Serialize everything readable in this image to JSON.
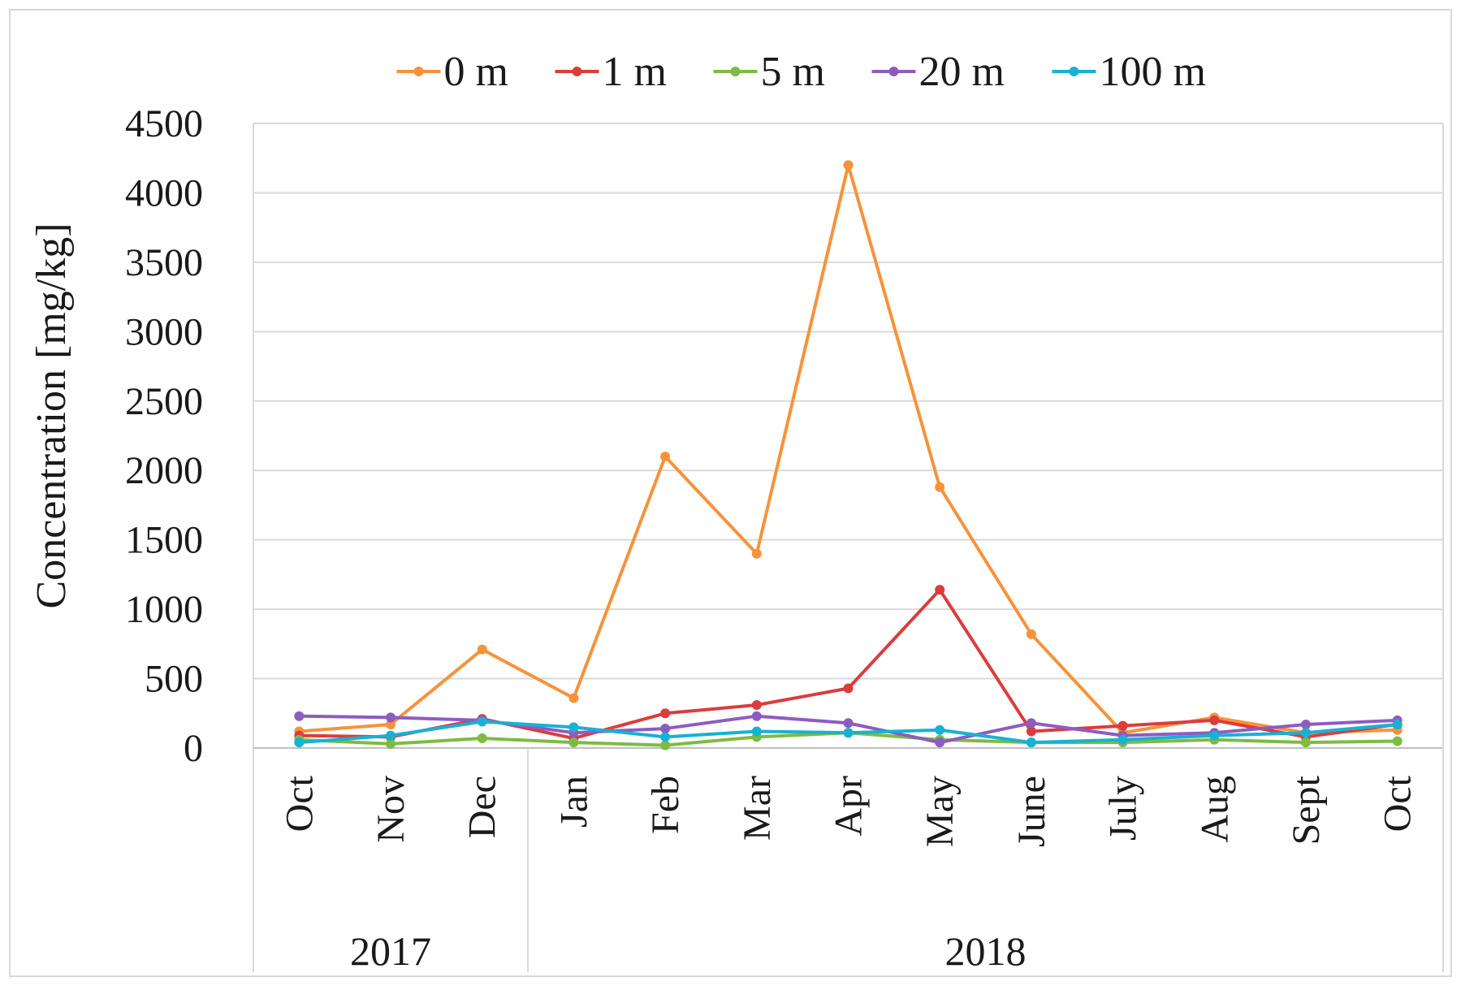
{
  "chart_data": {
    "type": "line",
    "title": "",
    "xlabel": "",
    "ylabel": "Concentration [mg/kg]",
    "ylim": [
      0,
      4500
    ],
    "yticks": [
      0,
      500,
      1000,
      1500,
      2000,
      2500,
      3000,
      3500,
      4000,
      4500
    ],
    "grid": true,
    "legend_position": "top",
    "categories": [
      "Oct",
      "Nov",
      "Dec",
      "Jan",
      "Feb",
      "Mar",
      "Apr",
      "May",
      "June",
      "July",
      "Aug",
      "Sept",
      "Oct"
    ],
    "year_groups": [
      {
        "label": "2017",
        "start": 0,
        "end": 2
      },
      {
        "label": "2018",
        "start": 3,
        "end": 12
      }
    ],
    "series": [
      {
        "name": "0 m",
        "color": "#f7923a",
        "values": [
          120,
          170,
          710,
          360,
          2100,
          1400,
          4200,
          1880,
          820,
          110,
          220,
          110,
          130
        ]
      },
      {
        "name": "1 m",
        "color": "#dc3c3c",
        "values": [
          90,
          80,
          210,
          70,
          250,
          310,
          430,
          1140,
          120,
          160,
          200,
          80,
          170
        ]
      },
      {
        "name": "5 m",
        "color": "#7dbb42",
        "values": [
          60,
          30,
          70,
          40,
          20,
          80,
          110,
          60,
          40,
          40,
          60,
          40,
          50
        ]
      },
      {
        "name": "20 m",
        "color": "#8e5cc0",
        "values": [
          230,
          220,
          200,
          110,
          140,
          230,
          180,
          40,
          180,
          90,
          110,
          170,
          200
        ]
      },
      {
        "name": "100 m",
        "color": "#17b2d3",
        "values": [
          40,
          90,
          190,
          150,
          80,
          120,
          110,
          130,
          40,
          60,
          90,
          110,
          170
        ]
      }
    ]
  }
}
